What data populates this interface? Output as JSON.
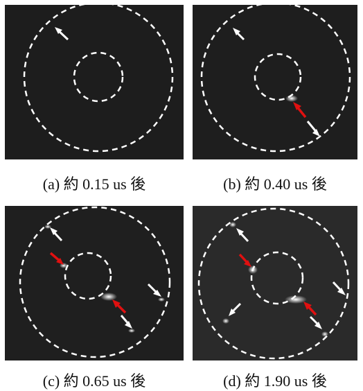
{
  "figure": {
    "panels": [
      {
        "id": "a",
        "caption": "(a) 約 0.15 us 後",
        "background": "#1d1d1d"
      },
      {
        "id": "b",
        "caption": "(b) 約  0.40 us 後",
        "background": "#1e1e1e"
      },
      {
        "id": "c",
        "caption": "(c) 約 0.65 us 後",
        "background": "#1f1f1f"
      },
      {
        "id": "d",
        "caption": "(d) 約 1.90 us 後",
        "background": "#2a2a2a"
      }
    ],
    "colors": {
      "circle": "#ffffff",
      "white_arrow": "#ffffff",
      "red_arrow": "#e01010",
      "glow": "#f4f4f4"
    }
  }
}
